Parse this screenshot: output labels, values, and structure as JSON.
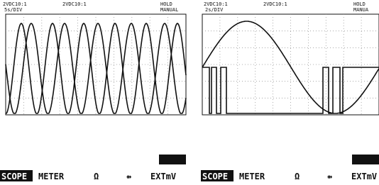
{
  "panels": [
    {
      "header": {
        "ch_a": "2VDC10:1",
        "ch_b": "2VDC10:1",
        "status": "HOLD",
        "mode": "MANUAL",
        "timebase": "5s/DIV"
      },
      "menu": [
        "SCOPE",
        "METER",
        "Ω",
        "⇻",
        "EXTmV"
      ]
    },
    {
      "header": {
        "ch_a": "2VDC10:1",
        "ch_b": "2VDC10:1",
        "status": "HOLD",
        "mode": "MANUA",
        "timebase": "2s/DIV"
      },
      "menu": [
        "SCOPE",
        "METER",
        "Ω",
        "⇻",
        "EXTmV"
      ]
    }
  ]
}
